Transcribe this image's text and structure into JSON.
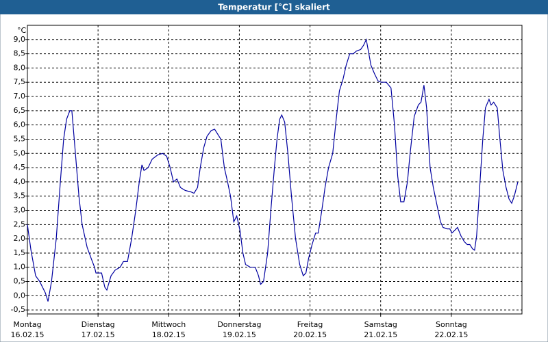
{
  "chart_data": {
    "type": "line",
    "title": "Temperatur [°C] skaliert",
    "y_unit": "°C",
    "color": "#0000a0",
    "grid": true,
    "xlim": [
      0,
      168
    ],
    "ylim": [
      -0.64,
      9.5
    ],
    "xticks": [
      {
        "value": 0,
        "label": "Montag",
        "sublabel": "16.02.15"
      },
      {
        "value": 24,
        "label": "Dienstag",
        "sublabel": "17.02.15"
      },
      {
        "value": 48,
        "label": "Mittwoch",
        "sublabel": "18.02.15"
      },
      {
        "value": 72,
        "label": "Donnerstag",
        "sublabel": "19.02.15"
      },
      {
        "value": 96,
        "label": "Freitag",
        "sublabel": "20.02.15"
      },
      {
        "value": 120,
        "label": "Samstag",
        "sublabel": "21.02.15"
      },
      {
        "value": 144,
        "label": "Sonntag",
        "sublabel": "22.02.15"
      }
    ],
    "yticks": [
      {
        "value": -0.5,
        "label": "-0,5"
      },
      {
        "value": 0,
        "label": "0,0"
      },
      {
        "value": 0.5,
        "label": "0,5"
      },
      {
        "value": 1,
        "label": "1,0"
      },
      {
        "value": 1.5,
        "label": "1,5"
      },
      {
        "value": 2,
        "label": "2,0"
      },
      {
        "value": 2.5,
        "label": "2,5"
      },
      {
        "value": 3,
        "label": "3,0"
      },
      {
        "value": 3.5,
        "label": "3,5"
      },
      {
        "value": 4,
        "label": "4,0"
      },
      {
        "value": 4.5,
        "label": "4,5"
      },
      {
        "value": 5,
        "label": "5,0"
      },
      {
        "value": 5.5,
        "label": "5,5"
      },
      {
        "value": 6,
        "label": "6,0"
      },
      {
        "value": 6.5,
        "label": "6,5"
      },
      {
        "value": 7,
        "label": "7,0"
      },
      {
        "value": 7.5,
        "label": "7,5"
      },
      {
        "value": 8,
        "label": "8,0"
      },
      {
        "value": 8.5,
        "label": "8,5"
      },
      {
        "value": 9,
        "label": "9,0"
      }
    ],
    "x": [
      0.0,
      1.2,
      2.8,
      4.2,
      6.1,
      7.0,
      8.2,
      9.8,
      11.2,
      12.3,
      13.3,
      14.4,
      15.1,
      16.3,
      17.5,
      18.6,
      20.3,
      21.7,
      22.8,
      23.3,
      24.0,
      25.2,
      26.3,
      27.0,
      28.4,
      29.8,
      31.5,
      32.6,
      34.0,
      35.4,
      36.8,
      38.0,
      38.9,
      39.6,
      41.0,
      42.4,
      44.3,
      45.9,
      47.3,
      48.5,
      49.6,
      50.8,
      52.0,
      53.6,
      55.5,
      56.6,
      57.8,
      58.7,
      59.9,
      61.0,
      62.4,
      63.6,
      64.8,
      65.7,
      66.9,
      68.0,
      69.0,
      70.1,
      71.1,
      72.2,
      73.2,
      74.1,
      75.7,
      77.4,
      78.5,
      79.2,
      80.2,
      81.6,
      82.7,
      83.9,
      84.8,
      85.7,
      86.4,
      87.4,
      88.5,
      89.7,
      91.1,
      92.5,
      93.7,
      94.6,
      95.5,
      96.7,
      97.9,
      98.8,
      100.0,
      101.1,
      102.3,
      103.7,
      104.9,
      106.0,
      107.2,
      108.3,
      109.5,
      110.7,
      111.8,
      113.2,
      114.2,
      115.1,
      116.0,
      116.7,
      117.9,
      119.1,
      120.2,
      121.9,
      123.5,
      124.7,
      125.8,
      126.8,
      127.9,
      129.1,
      130.0,
      131.4,
      132.8,
      133.7,
      134.7,
      135.6,
      136.8,
      137.9,
      139.1,
      140.3,
      141.2,
      142.6,
      143.5,
      144.2,
      145.2,
      146.1,
      147.3,
      148.4,
      149.4,
      150.3,
      151.2,
      151.9,
      152.6,
      153.5,
      154.7,
      155.6,
      156.8,
      157.5,
      158.4,
      159.6,
      160.5,
      161.5,
      162.6,
      163.6,
      164.5,
      165.4,
      166.6
    ],
    "values": [
      2.5,
      1.6,
      0.7,
      0.5,
      0.1,
      -0.2,
      0.5,
      2.0,
      4.0,
      5.5,
      6.2,
      6.5,
      6.5,
      5.0,
      3.5,
      2.5,
      1.7,
      1.3,
      1.0,
      0.8,
      0.8,
      0.8,
      0.3,
      0.2,
      0.7,
      0.9,
      1.0,
      1.2,
      1.2,
      2.0,
      3.0,
      4.0,
      4.6,
      4.4,
      4.5,
      4.8,
      4.95,
      5.0,
      4.9,
      4.5,
      4.0,
      4.1,
      3.8,
      3.7,
      3.65,
      3.6,
      3.8,
      4.5,
      5.2,
      5.6,
      5.8,
      5.85,
      5.65,
      5.5,
      4.5,
      4.0,
      3.5,
      2.6,
      2.8,
      2.3,
      1.5,
      1.1,
      1.0,
      1.0,
      0.7,
      0.4,
      0.5,
      1.5,
      3.0,
      4.5,
      5.5,
      6.2,
      6.35,
      6.1,
      5.0,
      3.5,
      2.0,
      1.1,
      0.7,
      0.8,
      1.3,
      1.8,
      2.2,
      2.2,
      3.0,
      3.8,
      4.5,
      5.0,
      6.2,
      7.2,
      7.6,
      8.1,
      8.5,
      8.5,
      8.6,
      8.65,
      8.8,
      9.0,
      8.5,
      8.1,
      7.8,
      7.55,
      7.5,
      7.5,
      7.3,
      6.0,
      4.2,
      3.3,
      3.3,
      4.0,
      5.0,
      6.3,
      6.7,
      6.8,
      7.4,
      6.6,
      4.5,
      3.8,
      3.2,
      2.6,
      2.4,
      2.35,
      2.35,
      2.2,
      2.3,
      2.4,
      2.1,
      1.9,
      1.8,
      1.8,
      1.65,
      1.6,
      2.1,
      3.6,
      5.5,
      6.6,
      6.9,
      6.7,
      6.8,
      6.6,
      5.5,
      4.4,
      3.8,
      3.4,
      3.25,
      3.5,
      4.0
    ]
  }
}
